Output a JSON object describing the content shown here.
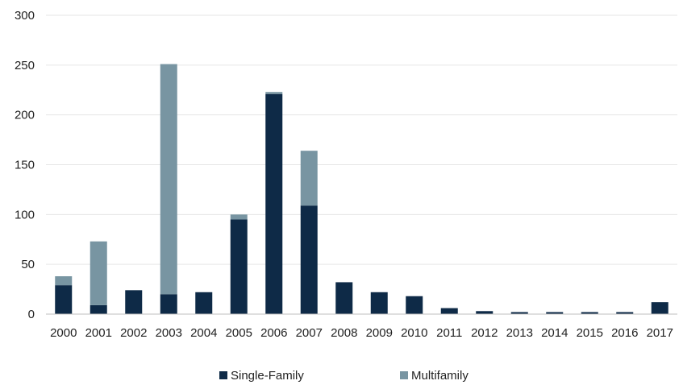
{
  "chart_data": {
    "type": "bar",
    "stacked": true,
    "title": "",
    "xlabel": "",
    "ylabel": "",
    "ylim": [
      0,
      300
    ],
    "yticks": [
      0,
      50,
      100,
      150,
      200,
      250,
      300
    ],
    "grid": true,
    "legend_position": "bottom",
    "categories": [
      "2000",
      "2001",
      "2002",
      "2003",
      "2004",
      "2005",
      "2006",
      "2007",
      "2008",
      "2009",
      "2010",
      "2011",
      "2012",
      "2013",
      "2014",
      "2015",
      "2016",
      "2017"
    ],
    "series": [
      {
        "name": "Single-Family",
        "color": "#0e2a47",
        "values": [
          29,
          9,
          24,
          20,
          22,
          95,
          221,
          109,
          32,
          22,
          18,
          6,
          3,
          2,
          2,
          2,
          2,
          12
        ]
      },
      {
        "name": "Multifamily",
        "color": "#7895a2",
        "values": [
          9,
          64,
          0,
          231,
          0,
          5,
          2,
          55,
          0,
          0,
          0,
          0,
          0,
          0,
          0,
          0,
          0,
          0
        ]
      }
    ]
  }
}
